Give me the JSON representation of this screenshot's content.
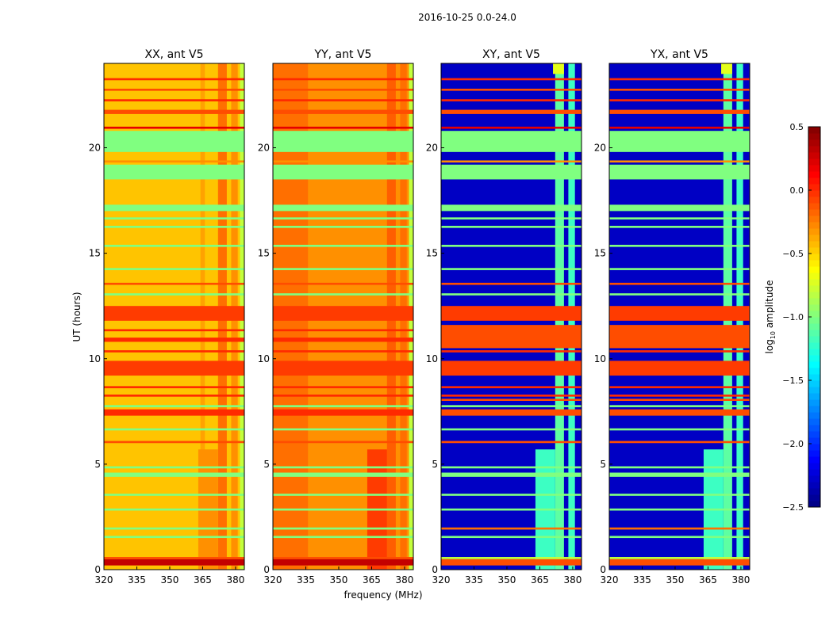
{
  "chart_data": {
    "type": "heatmap",
    "title": "2016-10-25 0.0-24.0",
    "xlabel": "frequency (MHz)",
    "ylabel": "UT (hours)",
    "xlim": [
      320,
      384
    ],
    "ylim": [
      0,
      24
    ],
    "xticks": [
      "320",
      "335",
      "350",
      "365",
      "380"
    ],
    "xtick_values": [
      320,
      335,
      350,
      365,
      380
    ],
    "yticks": [
      "0",
      "5",
      "10",
      "15",
      "20"
    ],
    "ytick_values": [
      0,
      5,
      10,
      15,
      20
    ],
    "colorbar": {
      "label_main": "log",
      "label_sub": "10",
      "label_rest": " amplitude",
      "range": [
        -2.5,
        0.5
      ],
      "colormap": "jet",
      "ticks": [
        "0.5",
        "0.0",
        "−0.5",
        "−1.0",
        "−1.5",
        "−2.0",
        "−2.5"
      ],
      "tick_values": [
        0.5,
        0.0,
        -0.5,
        -1.0,
        -1.5,
        -2.0,
        -2.5
      ]
    },
    "panels": [
      {
        "title": "XX, ant V5",
        "base": -0.45,
        "cols": [
          [
            364,
            366,
            -0.35,
            0,
            24
          ],
          [
            372,
            376,
            -0.2,
            0,
            24
          ],
          [
            378,
            381,
            -0.3,
            0,
            24
          ],
          [
            382,
            384,
            -0.8,
            0,
            24
          ],
          [
            363,
            372,
            -0.3,
            0,
            5.7
          ]
        ],
        "rows": [
          [
            0.2,
            0.5,
            0.3
          ],
          [
            0.5,
            0.6,
            -0.1
          ],
          [
            1.5,
            1.6,
            -1.0
          ],
          [
            1.9,
            2.0,
            -1.0
          ],
          [
            2.8,
            2.9,
            -1.0
          ],
          [
            3.5,
            3.6,
            -1.0
          ],
          [
            4.4,
            4.6,
            -1.0
          ],
          [
            4.8,
            4.9,
            -1.0
          ],
          [
            6.0,
            6.1,
            -0.1
          ],
          [
            6.6,
            6.7,
            -1.0
          ],
          [
            7.3,
            7.6,
            0.0
          ],
          [
            7.7,
            7.8,
            -1.0
          ],
          [
            8.2,
            8.3,
            0.0
          ],
          [
            8.6,
            8.7,
            0.0
          ],
          [
            9.2,
            9.9,
            -0.05
          ],
          [
            10.3,
            10.4,
            0.0
          ],
          [
            10.8,
            11.0,
            0.0
          ],
          [
            11.3,
            11.4,
            0.0
          ],
          [
            11.8,
            12.5,
            -0.05
          ],
          [
            13.0,
            13.1,
            -1.0
          ],
          [
            13.5,
            13.6,
            -0.1
          ],
          [
            14.2,
            14.3,
            -1.0
          ],
          [
            15.3,
            15.4,
            -1.0
          ],
          [
            16.2,
            16.3,
            -1.0
          ],
          [
            16.6,
            16.7,
            -1.0
          ],
          [
            17.0,
            17.3,
            -1.0
          ],
          [
            18.5,
            19.2,
            -1.0
          ],
          [
            19.3,
            19.4,
            -0.3
          ],
          [
            19.8,
            20.8,
            -1.0
          ],
          [
            20.9,
            21.0,
            0.2
          ],
          [
            21.6,
            21.8,
            -0.1
          ],
          [
            22.2,
            22.3,
            0.0
          ],
          [
            22.7,
            22.8,
            -0.1
          ],
          [
            23.2,
            23.3,
            0.0
          ]
        ]
      },
      {
        "title": "YY, ant V5",
        "base": -0.3,
        "cols": [
          [
            320,
            336,
            -0.2,
            0,
            24
          ],
          [
            372,
            376,
            -0.15,
            0,
            24
          ],
          [
            378,
            381,
            -0.2,
            0,
            24
          ],
          [
            382,
            384,
            -0.8,
            0,
            24
          ],
          [
            363,
            372,
            -0.05,
            0,
            5.7
          ]
        ],
        "rows": [
          [
            0.2,
            0.5,
            0.3
          ],
          [
            0.5,
            0.6,
            -0.1
          ],
          [
            1.5,
            1.6,
            -1.0
          ],
          [
            1.9,
            2.0,
            -1.0
          ],
          [
            2.8,
            2.9,
            -1.0
          ],
          [
            3.5,
            3.6,
            -1.0
          ],
          [
            4.4,
            4.6,
            -1.0
          ],
          [
            4.8,
            4.9,
            -1.0
          ],
          [
            6.0,
            6.1,
            -0.1
          ],
          [
            6.6,
            6.7,
            -1.0
          ],
          [
            7.3,
            7.6,
            0.0
          ],
          [
            7.7,
            7.8,
            -1.0
          ],
          [
            8.2,
            8.3,
            0.0
          ],
          [
            8.6,
            8.7,
            0.0
          ],
          [
            9.2,
            9.9,
            -0.05
          ],
          [
            10.3,
            10.4,
            0.0
          ],
          [
            10.8,
            11.0,
            0.0
          ],
          [
            11.3,
            11.4,
            0.0
          ],
          [
            11.8,
            12.5,
            -0.05
          ],
          [
            13.0,
            13.1,
            -1.0
          ],
          [
            13.5,
            13.6,
            -0.1
          ],
          [
            14.2,
            14.3,
            -1.0
          ],
          [
            15.3,
            15.4,
            -1.0
          ],
          [
            16.2,
            16.3,
            -1.0
          ],
          [
            16.6,
            16.7,
            -1.0
          ],
          [
            17.0,
            17.3,
            -1.0
          ],
          [
            18.5,
            19.2,
            -1.0
          ],
          [
            19.3,
            19.4,
            -0.3
          ],
          [
            19.8,
            20.8,
            -1.0
          ],
          [
            20.9,
            21.0,
            0.2
          ],
          [
            21.6,
            21.8,
            -0.1
          ],
          [
            22.2,
            22.3,
            0.0
          ],
          [
            22.7,
            22.8,
            -0.1
          ],
          [
            23.2,
            23.3,
            0.0
          ]
        ]
      },
      {
        "title": "XY, ant V5",
        "base": -2.3,
        "cols": [
          [
            372,
            376,
            -1.1,
            0,
            24
          ],
          [
            378,
            381,
            -1.2,
            0,
            24
          ],
          [
            363,
            372,
            -1.2,
            0,
            5.7
          ],
          [
            371,
            376,
            -0.7,
            23.5,
            24
          ]
        ],
        "rows": [
          [
            0.2,
            0.5,
            -0.1
          ],
          [
            0.5,
            0.6,
            -0.8
          ],
          [
            1.5,
            1.6,
            -1.0
          ],
          [
            1.9,
            2.0,
            -0.2
          ],
          [
            2.8,
            2.9,
            -1.0
          ],
          [
            3.5,
            3.6,
            -1.0
          ],
          [
            4.4,
            4.6,
            -1.0
          ],
          [
            4.8,
            4.9,
            -1.0
          ],
          [
            6.0,
            6.1,
            -0.1
          ],
          [
            6.6,
            6.7,
            -1.0
          ],
          [
            7.3,
            7.6,
            -0.1
          ],
          [
            7.7,
            7.8,
            -1.0
          ],
          [
            8.0,
            8.1,
            -0.1
          ],
          [
            8.2,
            8.3,
            0.0
          ],
          [
            8.6,
            8.7,
            0.0
          ],
          [
            9.2,
            9.9,
            -0.05
          ],
          [
            10.3,
            10.4,
            0.0
          ],
          [
            10.5,
            11.6,
            -0.1
          ],
          [
            11.8,
            12.5,
            -0.05
          ],
          [
            13.0,
            13.1,
            -1.0
          ],
          [
            13.5,
            13.6,
            -0.1
          ],
          [
            14.2,
            14.3,
            -1.0
          ],
          [
            15.3,
            15.4,
            -1.0
          ],
          [
            16.2,
            16.3,
            -1.0
          ],
          [
            16.6,
            16.7,
            -1.0
          ],
          [
            17.0,
            17.3,
            -1.0
          ],
          [
            18.5,
            19.2,
            -1.0
          ],
          [
            19.3,
            19.4,
            -0.3
          ],
          [
            19.8,
            20.8,
            -1.0
          ],
          [
            20.9,
            21.0,
            0.2
          ],
          [
            21.6,
            21.8,
            -0.1
          ],
          [
            22.2,
            22.3,
            0.0
          ],
          [
            22.7,
            22.8,
            -0.1
          ],
          [
            23.2,
            23.3,
            0.0
          ]
        ]
      },
      {
        "title": "YX, ant V5",
        "base": -2.3,
        "cols": [
          [
            372,
            376,
            -1.1,
            0,
            24
          ],
          [
            378,
            381,
            -1.2,
            0,
            24
          ],
          [
            363,
            372,
            -1.2,
            0,
            5.7
          ],
          [
            371,
            376,
            -0.7,
            23.5,
            24
          ]
        ],
        "rows": [
          [
            0.2,
            0.5,
            -0.1
          ],
          [
            0.5,
            0.6,
            -0.8
          ],
          [
            1.5,
            1.6,
            -1.0
          ],
          [
            1.9,
            2.0,
            -0.2
          ],
          [
            2.8,
            2.9,
            -1.0
          ],
          [
            3.5,
            3.6,
            -1.0
          ],
          [
            4.4,
            4.6,
            -1.0
          ],
          [
            4.8,
            4.9,
            -1.0
          ],
          [
            6.0,
            6.1,
            -0.1
          ],
          [
            6.6,
            6.7,
            -1.0
          ],
          [
            7.3,
            7.6,
            -0.1
          ],
          [
            7.7,
            7.8,
            -1.0
          ],
          [
            8.0,
            8.1,
            -0.1
          ],
          [
            8.2,
            8.3,
            0.0
          ],
          [
            8.6,
            8.7,
            0.0
          ],
          [
            9.2,
            9.9,
            -0.05
          ],
          [
            10.3,
            10.4,
            0.0
          ],
          [
            10.5,
            11.6,
            -0.1
          ],
          [
            11.8,
            12.5,
            -0.05
          ],
          [
            13.0,
            13.1,
            -1.0
          ],
          [
            13.5,
            13.6,
            -0.1
          ],
          [
            14.2,
            14.3,
            -1.0
          ],
          [
            15.3,
            15.4,
            -1.0
          ],
          [
            16.2,
            16.3,
            -1.0
          ],
          [
            16.6,
            16.7,
            -1.0
          ],
          [
            17.0,
            17.3,
            -1.0
          ],
          [
            18.5,
            19.2,
            -1.0
          ],
          [
            19.3,
            19.4,
            -0.3
          ],
          [
            19.8,
            20.8,
            -1.0
          ],
          [
            20.9,
            21.0,
            0.2
          ],
          [
            21.6,
            21.8,
            -0.1
          ],
          [
            22.2,
            22.3,
            0.0
          ],
          [
            22.7,
            22.8,
            -0.1
          ],
          [
            23.2,
            23.3,
            0.0
          ]
        ]
      }
    ]
  }
}
